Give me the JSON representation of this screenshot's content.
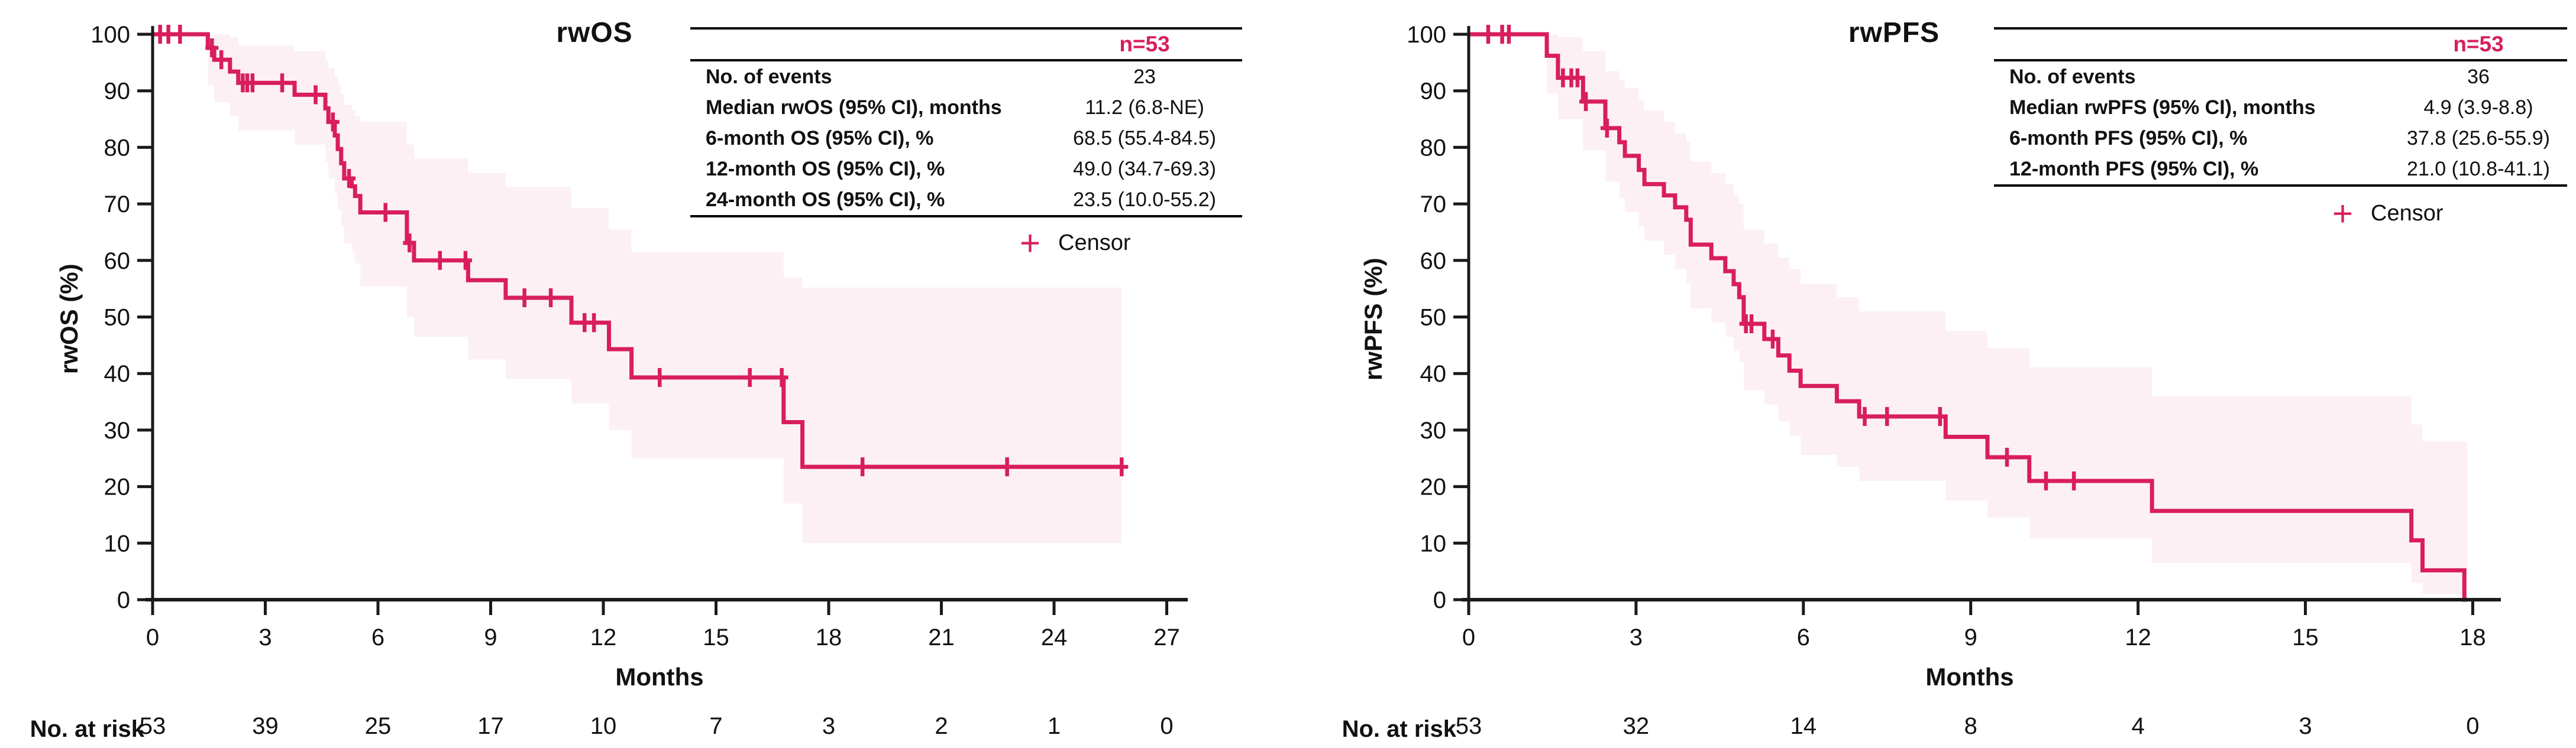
{
  "colors": {
    "accent": "#d81e5c",
    "band": "#fcf0f5",
    "axis": "#1a1a1a",
    "text": "#111111"
  },
  "icons": {
    "censor_plus": "+"
  },
  "panels": [
    {
      "title": "rwOS",
      "y_axis_label": "rwOS (%)",
      "x_axis_label": "Months",
      "table": {
        "n_header": "n=53",
        "rows": [
          {
            "label": "No. of events",
            "value": "23"
          },
          {
            "label": "Median rwOS (95% CI), months",
            "value": "11.2 (6.8-NE)"
          },
          {
            "label": "6-month OS (95% CI), %",
            "value": "68.5 (55.4-84.5)"
          },
          {
            "label": "12-month OS (95% CI), %",
            "value": "49.0 (34.7-69.3)"
          },
          {
            "label": "24-month OS (95% CI), %",
            "value": "23.5 (10.0-55.2)"
          }
        ]
      },
      "legend": {
        "label": "Censor"
      },
      "risk": {
        "label": "No. at risk",
        "counts": [
          53,
          39,
          25,
          17,
          10,
          7,
          3,
          2,
          1,
          0
        ]
      }
    },
    {
      "title": "rwPFS",
      "y_axis_label": "rwPFS (%)",
      "x_axis_label": "Months",
      "table": {
        "n_header": "n=53",
        "rows": [
          {
            "label": "No. of events",
            "value": "36"
          },
          {
            "label": "Median rwPFS (95% CI), months",
            "value": "4.9 (3.9-8.8)"
          },
          {
            "label": "6-month PFS (95% CI), %",
            "value": "37.8 (25.6-55.9)"
          },
          {
            "label": "12-month PFS (95% CI), %",
            "value": "21.0 (10.8-41.1)"
          }
        ]
      },
      "legend": {
        "label": "Censor"
      },
      "risk": {
        "label": "No. at risk",
        "counts": [
          53,
          32,
          14,
          8,
          4,
          3,
          0
        ]
      }
    }
  ],
  "chart_data": [
    {
      "type": "line",
      "subtype": "kaplan-meier-step",
      "title": "rwOS",
      "xlabel": "Months",
      "ylabel": "rwOS (%)",
      "xlim": [
        0,
        27
      ],
      "ylim": [
        0,
        100
      ],
      "x_ticks": [
        0,
        3,
        6,
        9,
        12,
        15,
        18,
        21,
        24,
        27
      ],
      "y_ticks": [
        0,
        10,
        20,
        30,
        40,
        50,
        60,
        70,
        80,
        90,
        100
      ],
      "grid": false,
      "end_time": 25.8,
      "steps": [
        [
          0,
          100
        ],
        [
          1.47,
          97.6
        ],
        [
          1.64,
          95.5
        ],
        [
          2.06,
          93.4
        ],
        [
          2.28,
          91.4
        ],
        [
          3.78,
          89.3
        ],
        [
          4.6,
          86.9
        ],
        [
          4.68,
          84.5
        ],
        [
          4.85,
          82.1
        ],
        [
          4.93,
          79.7
        ],
        [
          5.02,
          77.2
        ],
        [
          5.1,
          74.5
        ],
        [
          5.3,
          73.1
        ],
        [
          5.39,
          71.4
        ],
        [
          5.53,
          68.5
        ],
        [
          6.77,
          63.1
        ],
        [
          6.96,
          60.0
        ],
        [
          8.4,
          56.5
        ],
        [
          9.4,
          53.4
        ],
        [
          11.15,
          49.0
        ],
        [
          12.15,
          44.3
        ],
        [
          12.75,
          39.3
        ],
        [
          16.8,
          31.4
        ],
        [
          17.3,
          23.5
        ]
      ],
      "censors": [
        [
          0.2,
          100
        ],
        [
          0.42,
          100
        ],
        [
          0.73,
          100
        ],
        [
          1.58,
          97.6
        ],
        [
          1.83,
          95.5
        ],
        [
          2.4,
          91.4
        ],
        [
          2.52,
          91.4
        ],
        [
          2.66,
          91.4
        ],
        [
          3.45,
          91.4
        ],
        [
          4.34,
          89.3
        ],
        [
          4.8,
          84.5
        ],
        [
          5.23,
          74.5
        ],
        [
          6.2,
          68.5
        ],
        [
          6.84,
          63.1
        ],
        [
          7.65,
          60.0
        ],
        [
          8.33,
          60.0
        ],
        [
          9.9,
          53.4
        ],
        [
          10.6,
          53.4
        ],
        [
          11.5,
          49.0
        ],
        [
          11.75,
          49.0
        ],
        [
          13.5,
          39.3
        ],
        [
          15.9,
          39.3
        ],
        [
          16.75,
          39.3
        ],
        [
          18.9,
          23.5
        ],
        [
          22.75,
          23.5
        ],
        [
          25.8,
          23.5
        ]
      ],
      "ci_band": [
        [
          1.47,
          91,
          100
        ],
        [
          1.64,
          88,
          100
        ],
        [
          2.06,
          85.5,
          99.5
        ],
        [
          2.28,
          83,
          98
        ],
        [
          3.78,
          80.5,
          97
        ],
        [
          4.6,
          77.5,
          95.5
        ],
        [
          4.68,
          74.5,
          94
        ],
        [
          4.85,
          71.8,
          92.5
        ],
        [
          4.93,
          69,
          91
        ],
        [
          5.02,
          66,
          89.5
        ],
        [
          5.1,
          63,
          87.5
        ],
        [
          5.3,
          61.5,
          86.5
        ],
        [
          5.39,
          59.5,
          85.5
        ],
        [
          5.53,
          55.4,
          84.5
        ],
        [
          6.77,
          50,
          80.5
        ],
        [
          6.96,
          46.5,
          78
        ],
        [
          8.4,
          42.5,
          75.5
        ],
        [
          9.4,
          39,
          73
        ],
        [
          11.15,
          34.7,
          69.3
        ],
        [
          12.15,
          30,
          65.5
        ],
        [
          12.75,
          25,
          61.5
        ],
        [
          16.8,
          17,
          57
        ],
        [
          17.3,
          10.0,
          55.2
        ]
      ],
      "stats": {
        "n": 53,
        "events": 23,
        "median": "11.2 (6.8-NE)",
        "os6": "68.5 (55.4-84.5)",
        "os12": "49.0 (34.7-69.3)",
        "os24": "23.5 (10.0-55.2)"
      }
    },
    {
      "type": "line",
      "subtype": "kaplan-meier-step",
      "title": "rwPFS",
      "xlabel": "Months",
      "ylabel": "rwPFS (%)",
      "xlim": [
        0,
        18
      ],
      "ylim": [
        0,
        100
      ],
      "x_ticks": [
        0,
        3,
        6,
        9,
        12,
        15,
        18
      ],
      "y_ticks": [
        0,
        10,
        20,
        30,
        40,
        50,
        60,
        70,
        80,
        90,
        100
      ],
      "grid": false,
      "end_time": 17.9,
      "steps": [
        [
          0,
          100
        ],
        [
          1.4,
          96.2
        ],
        [
          1.6,
          92.3
        ],
        [
          2.05,
          88.1
        ],
        [
          2.45,
          83.4
        ],
        [
          2.7,
          80.9
        ],
        [
          2.8,
          78.5
        ],
        [
          3.05,
          76.0
        ],
        [
          3.15,
          73.5
        ],
        [
          3.5,
          71.5
        ],
        [
          3.7,
          69.4
        ],
        [
          3.9,
          67.2
        ],
        [
          3.98,
          62.8
        ],
        [
          4.35,
          60.4
        ],
        [
          4.6,
          58.1
        ],
        [
          4.75,
          55.8
        ],
        [
          4.85,
          53.5
        ],
        [
          4.93,
          48.8
        ],
        [
          5.3,
          46.1
        ],
        [
          5.55,
          43.2
        ],
        [
          5.75,
          40.5
        ],
        [
          5.95,
          37.8
        ],
        [
          6.6,
          35.1
        ],
        [
          7.0,
          32.4
        ],
        [
          8.55,
          28.8
        ],
        [
          9.3,
          25.2
        ],
        [
          10.05,
          21.0
        ],
        [
          12.25,
          15.7
        ],
        [
          16.9,
          10.5
        ],
        [
          17.1,
          5.2
        ],
        [
          17.85,
          0
        ]
      ],
      "censors": [
        [
          0.35,
          100
        ],
        [
          0.6,
          100
        ],
        [
          0.72,
          100
        ],
        [
          1.69,
          92.3
        ],
        [
          1.84,
          92.3
        ],
        [
          1.95,
          92.3
        ],
        [
          2.1,
          88.1
        ],
        [
          2.48,
          83.4
        ],
        [
          4.97,
          48.8
        ],
        [
          5.07,
          48.8
        ],
        [
          5.45,
          46.1
        ],
        [
          7.1,
          32.4
        ],
        [
          7.5,
          32.4
        ],
        [
          8.45,
          32.4
        ],
        [
          9.65,
          25.2
        ],
        [
          10.35,
          21.0
        ],
        [
          10.85,
          21.0
        ]
      ],
      "ci_band": [
        [
          1.4,
          89.5,
          100
        ],
        [
          1.6,
          85,
          99.5
        ],
        [
          2.05,
          79.5,
          97
        ],
        [
          2.45,
          74,
          93.5
        ],
        [
          2.7,
          71,
          92
        ],
        [
          2.8,
          68.5,
          90.5
        ],
        [
          3.05,
          66,
          88.5
        ],
        [
          3.15,
          63.5,
          86.5
        ],
        [
          3.5,
          61,
          84.5
        ],
        [
          3.7,
          58.5,
          82.5
        ],
        [
          3.9,
          56,
          81
        ],
        [
          3.98,
          51.5,
          77.5
        ],
        [
          4.35,
          49,
          75.5
        ],
        [
          4.6,
          46.5,
          73.5
        ],
        [
          4.75,
          44,
          71.5
        ],
        [
          4.85,
          42,
          70
        ],
        [
          4.93,
          37,
          65.5
        ],
        [
          5.3,
          34.5,
          63
        ],
        [
          5.55,
          31.5,
          60.5
        ],
        [
          5.75,
          29,
          58.5
        ],
        [
          5.95,
          25.6,
          55.9
        ],
        [
          6.6,
          23.5,
          53.5
        ],
        [
          7.0,
          21,
          51
        ],
        [
          8.55,
          17.5,
          47.5
        ],
        [
          9.3,
          14.5,
          44.5
        ],
        [
          10.05,
          10.8,
          41.1
        ],
        [
          12.25,
          6.5,
          36
        ],
        [
          16.9,
          3,
          31
        ],
        [
          17.1,
          1,
          28
        ]
      ],
      "stats": {
        "n": 53,
        "events": 36,
        "median": "4.9 (3.9-8.8)",
        "pfs6": "37.8 (25.6-55.9)",
        "pfs12": "21.0 (10.8-41.1)"
      }
    }
  ]
}
